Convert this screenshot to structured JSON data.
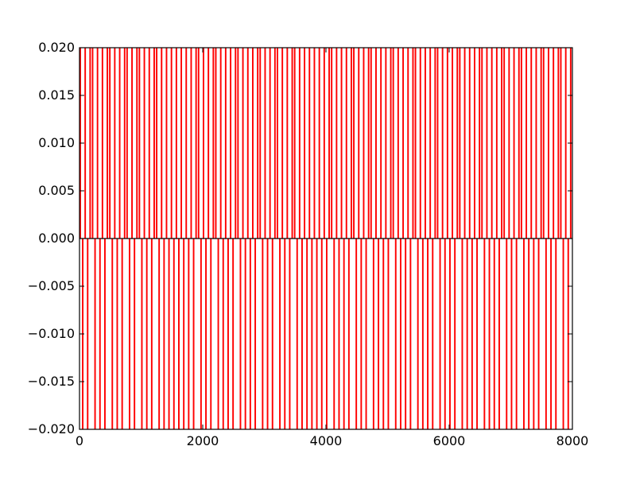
{
  "chart_data": {
    "type": "bar",
    "title": "",
    "xlabel": "",
    "ylabel": "",
    "xlim": [
      0,
      8000
    ],
    "ylim": [
      -0.02,
      0.02
    ],
    "grid": false,
    "legend": "none",
    "bar_color": "#ff0000",
    "axis_color": "#000000",
    "background": "#ffffff",
    "x_ticks": [
      0,
      2000,
      4000,
      6000,
      8000
    ],
    "x_tick_labels": [
      "0",
      "2000",
      "4000",
      "6000",
      "8000"
    ],
    "y_ticks": [
      -0.02,
      -0.015,
      -0.01,
      -0.005,
      0,
      0.005,
      0.01,
      0.015,
      0.02
    ],
    "y_tick_labels": [
      "−0.020",
      "−0.015",
      "−0.010",
      "−0.005",
      "0.000",
      "0.005",
      "0.010",
      "0.015",
      "0.020"
    ],
    "series": [
      {
        "values_note": "",
        "positive_value": 0.02,
        "negative_value": -0.02,
        "points": [
          [
            0,
            0.02
          ],
          [
            40,
            -0.02
          ],
          [
            80,
            0.02
          ],
          [
            120,
            -0.02
          ],
          [
            160,
            0.02
          ],
          [
            200,
            0.02
          ],
          [
            240,
            -0.02
          ],
          [
            280,
            0.02
          ],
          [
            320,
            -0.02
          ],
          [
            360,
            0.02
          ],
          [
            400,
            -0.02
          ],
          [
            440,
            0.02
          ],
          [
            480,
            0.02
          ],
          [
            520,
            -0.02
          ],
          [
            560,
            0.02
          ],
          [
            600,
            -0.02
          ],
          [
            640,
            0.02
          ],
          [
            680,
            -0.02
          ],
          [
            720,
            0.02
          ],
          [
            760,
            0.02
          ],
          [
            800,
            -0.02
          ],
          [
            840,
            0.02
          ],
          [
            880,
            -0.02
          ],
          [
            920,
            0.02
          ],
          [
            960,
            0.02
          ],
          [
            1000,
            -0.02
          ],
          [
            1040,
            0.02
          ],
          [
            1080,
            -0.02
          ],
          [
            1120,
            0.02
          ],
          [
            1160,
            -0.02
          ],
          [
            1200,
            0.02
          ],
          [
            1240,
            0.02
          ],
          [
            1280,
            -0.02
          ],
          [
            1320,
            0.02
          ],
          [
            1360,
            -0.02
          ],
          [
            1400,
            0.02
          ],
          [
            1440,
            -0.02
          ],
          [
            1480,
            0.02
          ],
          [
            1520,
            -0.02
          ],
          [
            1560,
            0.02
          ],
          [
            1600,
            -0.02
          ],
          [
            1640,
            0.02
          ],
          [
            1680,
            -0.02
          ],
          [
            1720,
            0.02
          ],
          [
            1760,
            -0.02
          ],
          [
            1800,
            0.02
          ],
          [
            1840,
            -0.02
          ],
          [
            1880,
            0.02
          ],
          [
            1920,
            0.02
          ],
          [
            1960,
            -0.02
          ],
          [
            2000,
            0.02
          ],
          [
            2040,
            -0.02
          ],
          [
            2080,
            0.02
          ],
          [
            2120,
            -0.02
          ],
          [
            2160,
            0.02
          ],
          [
            2200,
            0.02
          ],
          [
            2240,
            -0.02
          ],
          [
            2280,
            0.02
          ],
          [
            2320,
            -0.02
          ],
          [
            2360,
            0.02
          ],
          [
            2400,
            -0.02
          ],
          [
            2440,
            0.02
          ],
          [
            2480,
            -0.02
          ],
          [
            2520,
            0.02
          ],
          [
            2560,
            0.02
          ],
          [
            2600,
            -0.02
          ],
          [
            2640,
            0.02
          ],
          [
            2680,
            -0.02
          ],
          [
            2720,
            0.02
          ],
          [
            2760,
            -0.02
          ],
          [
            2800,
            0.02
          ],
          [
            2840,
            -0.02
          ],
          [
            2880,
            0.02
          ],
          [
            2920,
            0.02
          ],
          [
            2960,
            -0.02
          ],
          [
            3000,
            0.02
          ],
          [
            3040,
            -0.02
          ],
          [
            3080,
            0.02
          ],
          [
            3120,
            -0.02
          ],
          [
            3160,
            0.02
          ],
          [
            3200,
            0.02
          ],
          [
            3240,
            -0.02
          ],
          [
            3280,
            0.02
          ],
          [
            3320,
            -0.02
          ],
          [
            3360,
            0.02
          ],
          [
            3400,
            -0.02
          ],
          [
            3440,
            0.02
          ],
          [
            3480,
            0.02
          ],
          [
            3520,
            -0.02
          ],
          [
            3560,
            0.02
          ],
          [
            3600,
            -0.02
          ],
          [
            3640,
            0.02
          ],
          [
            3680,
            -0.02
          ],
          [
            3720,
            0.02
          ],
          [
            3760,
            -0.02
          ],
          [
            3800,
            0.02
          ],
          [
            3840,
            -0.02
          ],
          [
            3880,
            0.02
          ],
          [
            3920,
            -0.02
          ],
          [
            3960,
            0.02
          ],
          [
            4000,
            -0.02
          ],
          [
            4040,
            0.02
          ],
          [
            4080,
            0.02
          ],
          [
            4120,
            -0.02
          ],
          [
            4160,
            0.02
          ],
          [
            4200,
            -0.02
          ],
          [
            4240,
            0.02
          ],
          [
            4280,
            -0.02
          ],
          [
            4320,
            0.02
          ],
          [
            4360,
            -0.02
          ],
          [
            4400,
            0.02
          ],
          [
            4440,
            0.02
          ],
          [
            4480,
            -0.02
          ],
          [
            4520,
            0.02
          ],
          [
            4560,
            -0.02
          ],
          [
            4600,
            0.02
          ],
          [
            4640,
            -0.02
          ],
          [
            4680,
            0.02
          ],
          [
            4720,
            0.02
          ],
          [
            4760,
            -0.02
          ],
          [
            4800,
            0.02
          ],
          [
            4840,
            -0.02
          ],
          [
            4880,
            0.02
          ],
          [
            4920,
            -0.02
          ],
          [
            4960,
            0.02
          ],
          [
            5000,
            -0.02
          ],
          [
            5040,
            0.02
          ],
          [
            5080,
            0.02
          ],
          [
            5120,
            -0.02
          ],
          [
            5160,
            0.02
          ],
          [
            5200,
            -0.02
          ],
          [
            5240,
            0.02
          ],
          [
            5280,
            -0.02
          ],
          [
            5320,
            0.02
          ],
          [
            5360,
            -0.02
          ],
          [
            5400,
            0.02
          ],
          [
            5440,
            0.02
          ],
          [
            5480,
            -0.02
          ],
          [
            5520,
            0.02
          ],
          [
            5560,
            -0.02
          ],
          [
            5600,
            0.02
          ],
          [
            5640,
            -0.02
          ],
          [
            5680,
            0.02
          ],
          [
            5720,
            -0.02
          ],
          [
            5760,
            0.02
          ],
          [
            5800,
            0.02
          ],
          [
            5840,
            -0.02
          ],
          [
            5880,
            0.02
          ],
          [
            5920,
            -0.02
          ],
          [
            5960,
            0.02
          ],
          [
            6000,
            -0.02
          ],
          [
            6040,
            0.02
          ],
          [
            6080,
            -0.02
          ],
          [
            6120,
            0.02
          ],
          [
            6160,
            0.02
          ],
          [
            6200,
            -0.02
          ],
          [
            6240,
            0.02
          ],
          [
            6280,
            -0.02
          ],
          [
            6320,
            0.02
          ],
          [
            6360,
            -0.02
          ],
          [
            6400,
            0.02
          ],
          [
            6440,
            -0.02
          ],
          [
            6480,
            0.02
          ],
          [
            6520,
            0.02
          ],
          [
            6560,
            -0.02
          ],
          [
            6600,
            0.02
          ],
          [
            6640,
            -0.02
          ],
          [
            6680,
            0.02
          ],
          [
            6720,
            -0.02
          ],
          [
            6760,
            0.02
          ],
          [
            6800,
            -0.02
          ],
          [
            6840,
            0.02
          ],
          [
            6880,
            0.02
          ],
          [
            6920,
            -0.02
          ],
          [
            6960,
            0.02
          ],
          [
            7000,
            -0.02
          ],
          [
            7040,
            0.02
          ],
          [
            7080,
            -0.02
          ],
          [
            7120,
            0.02
          ],
          [
            7160,
            0.02
          ],
          [
            7200,
            -0.02
          ],
          [
            7240,
            0.02
          ],
          [
            7280,
            -0.02
          ],
          [
            7320,
            0.02
          ],
          [
            7360,
            -0.02
          ],
          [
            7400,
            0.02
          ],
          [
            7440,
            -0.02
          ],
          [
            7480,
            0.02
          ],
          [
            7520,
            0.02
          ],
          [
            7560,
            -0.02
          ],
          [
            7600,
            0.02
          ],
          [
            7640,
            -0.02
          ],
          [
            7680,
            0.02
          ],
          [
            7720,
            -0.02
          ],
          [
            7760,
            0.02
          ],
          [
            7800,
            0.02
          ],
          [
            7840,
            -0.02
          ],
          [
            7880,
            0.02
          ],
          [
            7920,
            -0.02
          ],
          [
            7960,
            0.02
          ]
        ]
      }
    ]
  }
}
